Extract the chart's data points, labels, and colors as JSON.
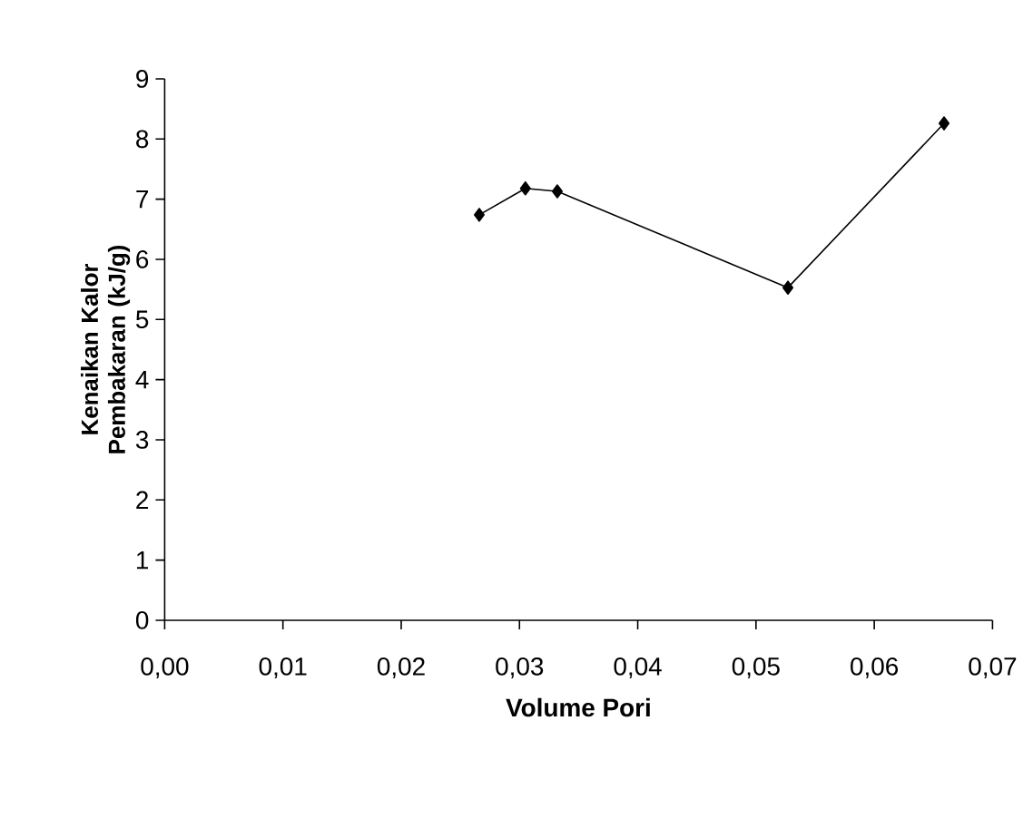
{
  "chart_data": {
    "type": "line",
    "xlabel": "Volume Pori",
    "ylabel": "Kenaikan Kalor Pembakaran (kJ/g)",
    "x": [
      0.0266,
      0.0305,
      0.0332,
      0.0527,
      0.0659
    ],
    "series": [
      {
        "color": "#000000",
        "values": [
          6.74,
          7.18,
          7.13,
          5.53,
          8.26
        ]
      }
    ],
    "xlim": [
      0,
      0.07
    ],
    "xticks": [
      {
        "value": 0,
        "label": "0,00"
      },
      {
        "value": 0.01,
        "label": "0,01"
      },
      {
        "value": 0.02,
        "label": "0,02"
      },
      {
        "value": 0.03,
        "label": "0,03"
      },
      {
        "value": 0.04,
        "label": "0,04"
      },
      {
        "value": 0.05,
        "label": "0,05"
      },
      {
        "value": 0.06,
        "label": "0,06"
      },
      {
        "value": 0.07,
        "label": "0,07"
      }
    ],
    "ylim": [
      0,
      9
    ],
    "yticks": [
      0,
      1,
      2,
      3,
      4,
      5,
      6,
      7,
      8,
      9
    ],
    "marker": "diamond",
    "line_style": "solid"
  }
}
